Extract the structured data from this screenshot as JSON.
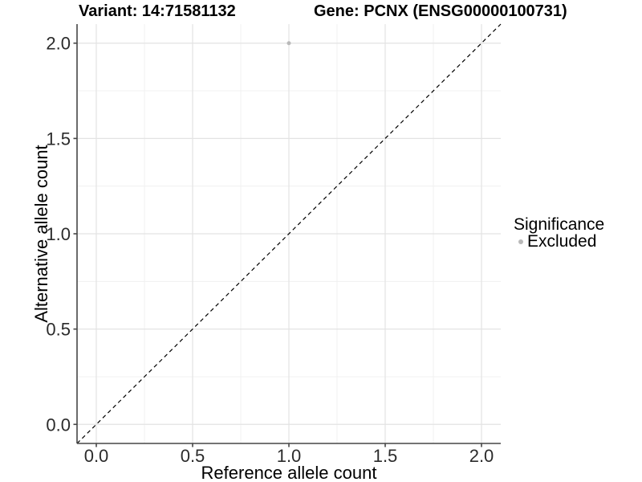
{
  "header": {
    "variant_title": "Variant: 14:71581132",
    "gene_title": "Gene: PCNX (ENSG00000100731)"
  },
  "legend": {
    "title": "Significance",
    "items": [
      {
        "label": "Excluded",
        "color": "#b9b9b9"
      }
    ]
  },
  "chart_data": {
    "type": "scatter",
    "title": "Variant: 14:71581132    Gene: PCNX (ENSG00000100731)",
    "xlabel": "Reference allele count",
    "ylabel": "Alternative allele count",
    "xlim": [
      -0.1,
      2.1
    ],
    "ylim": [
      -0.1,
      2.1
    ],
    "x_ticks": [
      0.0,
      0.5,
      1.0,
      1.5,
      2.0
    ],
    "y_ticks": [
      0.0,
      0.5,
      1.0,
      1.5,
      2.0
    ],
    "x_minor_ticks": [
      0.25,
      0.75,
      1.25,
      1.75
    ],
    "y_minor_ticks": [
      0.25,
      0.75,
      1.25,
      1.75
    ],
    "grid": true,
    "legend_position": "right",
    "series": [
      {
        "name": "Excluded",
        "color": "#b9b9b9",
        "points": [
          {
            "x": 1.0,
            "y": 2.0
          }
        ]
      }
    ],
    "reference_line": {
      "type": "identity",
      "style": "dashed",
      "color": "#000000"
    }
  },
  "style": {
    "grid_major_color": "#e3e3e3",
    "grid_minor_color": "#f0f0f0",
    "axis_color": "#464646",
    "tick_label_color": "#2b2b2b",
    "background_color": "#ffffff"
  }
}
